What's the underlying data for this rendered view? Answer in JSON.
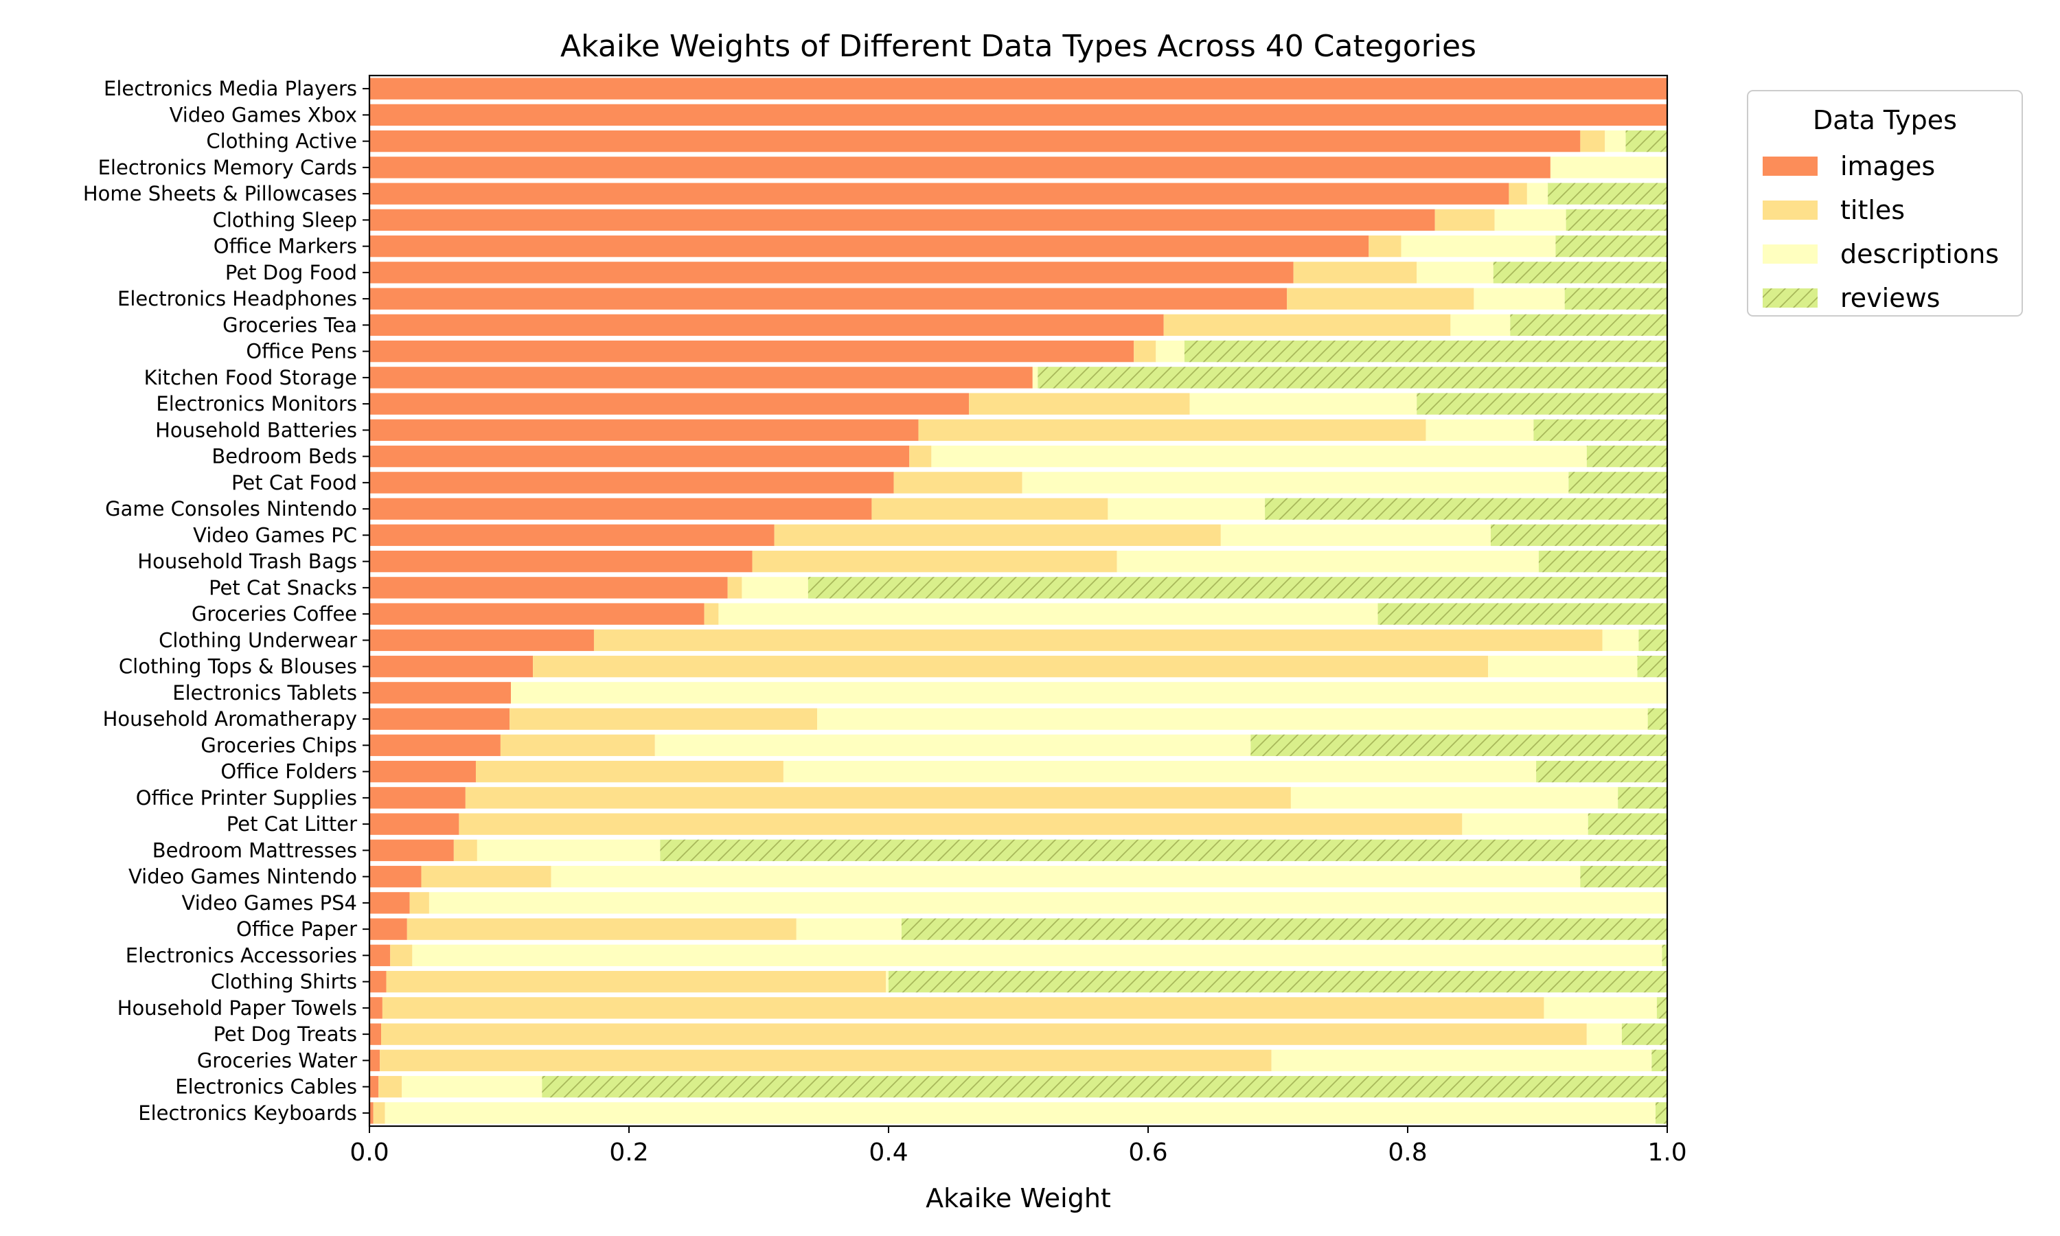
{
  "chart_data": {
    "type": "bar",
    "orientation": "horizontal",
    "stacked": true,
    "title": "Akaike Weights of Different Data Types Across 40 Categories",
    "xlabel": "Akaike Weight",
    "ylabel": "",
    "xlim": [
      0.0,
      1.0
    ],
    "xticks": [
      "0.0",
      "0.2",
      "0.4",
      "0.6",
      "0.8",
      "1.0"
    ],
    "grid": false,
    "legend": {
      "title": "Data Types",
      "placement": "outside-top-right"
    },
    "categories": [
      "Electronics Media Players",
      "Video Games Xbox",
      "Clothing Active",
      "Electronics Memory Cards",
      "Home Sheets & Pillowcases",
      "Clothing Sleep",
      "Office Markers",
      "Pet Dog Food",
      "Electronics Headphones",
      "Groceries Tea",
      "Office Pens",
      "Kitchen Food Storage",
      "Electronics Monitors",
      "Household Batteries",
      "Bedroom Beds",
      "Pet Cat Food",
      "Game Consoles Nintendo",
      "Video Games PC",
      "Household Trash Bags",
      "Pet Cat Snacks",
      "Groceries Coffee",
      "Clothing Underwear",
      "Clothing Tops & Blouses",
      "Electronics Tablets",
      "Household Aromatherapy",
      "Groceries Chips",
      "Office Folders",
      "Office Printer Supplies",
      "Pet Cat Litter",
      "Bedroom Mattresses",
      "Video Games Nintendo",
      "Video Games PS4",
      "Office Paper",
      "Electronics Accessories",
      "Clothing Shirts",
      "Household Paper Towels",
      "Pet Dog Treats",
      "Groceries Water",
      "Electronics Cables",
      "Electronics Keyboards"
    ],
    "series": [
      {
        "name": "images",
        "color": "#fc8d59",
        "hatch": false,
        "values": [
          1.0,
          1.0,
          0.933,
          0.91,
          0.878,
          0.821,
          0.77,
          0.712,
          0.707,
          0.612,
          0.589,
          0.511,
          0.462,
          0.423,
          0.416,
          0.404,
          0.387,
          0.312,
          0.295,
          0.276,
          0.258,
          0.173,
          0.126,
          0.109,
          0.108,
          0.101,
          0.082,
          0.074,
          0.069,
          0.065,
          0.04,
          0.031,
          0.029,
          0.016,
          0.013,
          0.01,
          0.009,
          0.008,
          0.007,
          0.003
        ]
      },
      {
        "name": "titles",
        "color": "#fee08b",
        "hatch": false,
        "values": [
          0.0,
          0.0,
          0.019,
          0.0,
          0.014,
          0.046,
          0.025,
          0.095,
          0.144,
          0.221,
          0.017,
          0.0,
          0.17,
          0.391,
          0.017,
          0.099,
          0.182,
          0.344,
          0.281,
          0.011,
          0.011,
          0.777,
          0.736,
          0.0,
          0.237,
          0.119,
          0.237,
          0.636,
          0.773,
          0.018,
          0.1,
          0.015,
          0.3,
          0.017,
          0.385,
          0.895,
          0.929,
          0.687,
          0.018,
          0.009
        ]
      },
      {
        "name": "descriptions",
        "color": "#ffffbf",
        "hatch": false,
        "values": [
          0.0,
          0.0,
          0.016,
          0.09,
          0.016,
          0.055,
          0.119,
          0.059,
          0.07,
          0.046,
          0.022,
          0.004,
          0.175,
          0.083,
          0.505,
          0.421,
          0.121,
          0.208,
          0.325,
          0.051,
          0.508,
          0.028,
          0.115,
          0.891,
          0.64,
          0.459,
          0.58,
          0.252,
          0.097,
          0.141,
          0.793,
          0.954,
          0.081,
          0.963,
          0.002,
          0.087,
          0.027,
          0.293,
          0.108,
          0.979
        ]
      },
      {
        "name": "reviews",
        "color": "#d9ef8b",
        "hatch": true,
        "values": [
          0.0,
          0.0,
          0.032,
          0.0,
          0.092,
          0.078,
          0.086,
          0.134,
          0.079,
          0.121,
          0.372,
          0.485,
          0.193,
          0.103,
          0.062,
          0.076,
          0.31,
          0.136,
          0.099,
          0.662,
          0.223,
          0.022,
          0.023,
          0.0,
          0.015,
          0.321,
          0.101,
          0.038,
          0.061,
          0.776,
          0.067,
          0.0,
          0.59,
          0.004,
          0.6,
          0.008,
          0.035,
          0.012,
          0.867,
          0.009
        ]
      }
    ]
  }
}
